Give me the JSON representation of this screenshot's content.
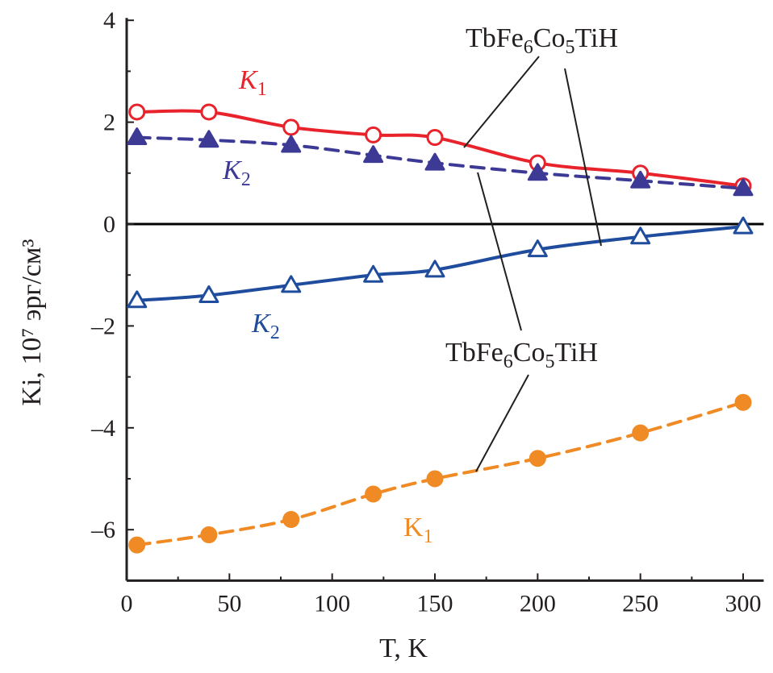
{
  "chart_data": {
    "type": "line",
    "xlabel": "T, K",
    "ylabel": "Ki, 10⁷ эрг/см³",
    "xlim": [
      0,
      310
    ],
    "ylim": [
      -7,
      4
    ],
    "xticks": [
      0,
      50,
      100,
      150,
      200,
      250,
      300
    ],
    "yticks": [
      -6,
      -4,
      -2,
      0,
      2,
      4
    ],
    "ytick_labels": [
      "–6",
      "–4",
      "–2",
      "0",
      "2",
      "4"
    ],
    "grid": false,
    "zero_line": true,
    "x": [
      5,
      40,
      80,
      120,
      150,
      200,
      250,
      300
    ],
    "series": [
      {
        "name": "K1",
        "color": "#e8232b",
        "marker": "open-circle",
        "line": "solid",
        "values": [
          2.2,
          2.2,
          1.9,
          1.75,
          1.7,
          1.2,
          1.0,
          0.75
        ]
      },
      {
        "name": "K2",
        "color": "#3d3a96",
        "marker": "filled-triangle",
        "line": "dashed",
        "values": [
          1.7,
          1.65,
          1.55,
          1.35,
          1.2,
          1.0,
          0.85,
          0.7
        ]
      },
      {
        "name": "K2",
        "color": "#1f4c9c",
        "marker": "open-triangle",
        "line": "solid",
        "values": [
          -1.5,
          -1.4,
          -1.2,
          -1.0,
          -0.9,
          -0.5,
          -0.25,
          -0.05
        ]
      },
      {
        "name": "K1",
        "color": "#f08a24",
        "marker": "filled-circle",
        "line": "dashed",
        "values": [
          -6.3,
          -6.1,
          -5.8,
          -5.3,
          -5.0,
          -4.6,
          -4.1,
          -3.5
        ]
      }
    ],
    "annotations": [
      {
        "text": "TbFe6Co5TiH"
      },
      {
        "text": "TbFe6Co5TiH"
      }
    ]
  }
}
